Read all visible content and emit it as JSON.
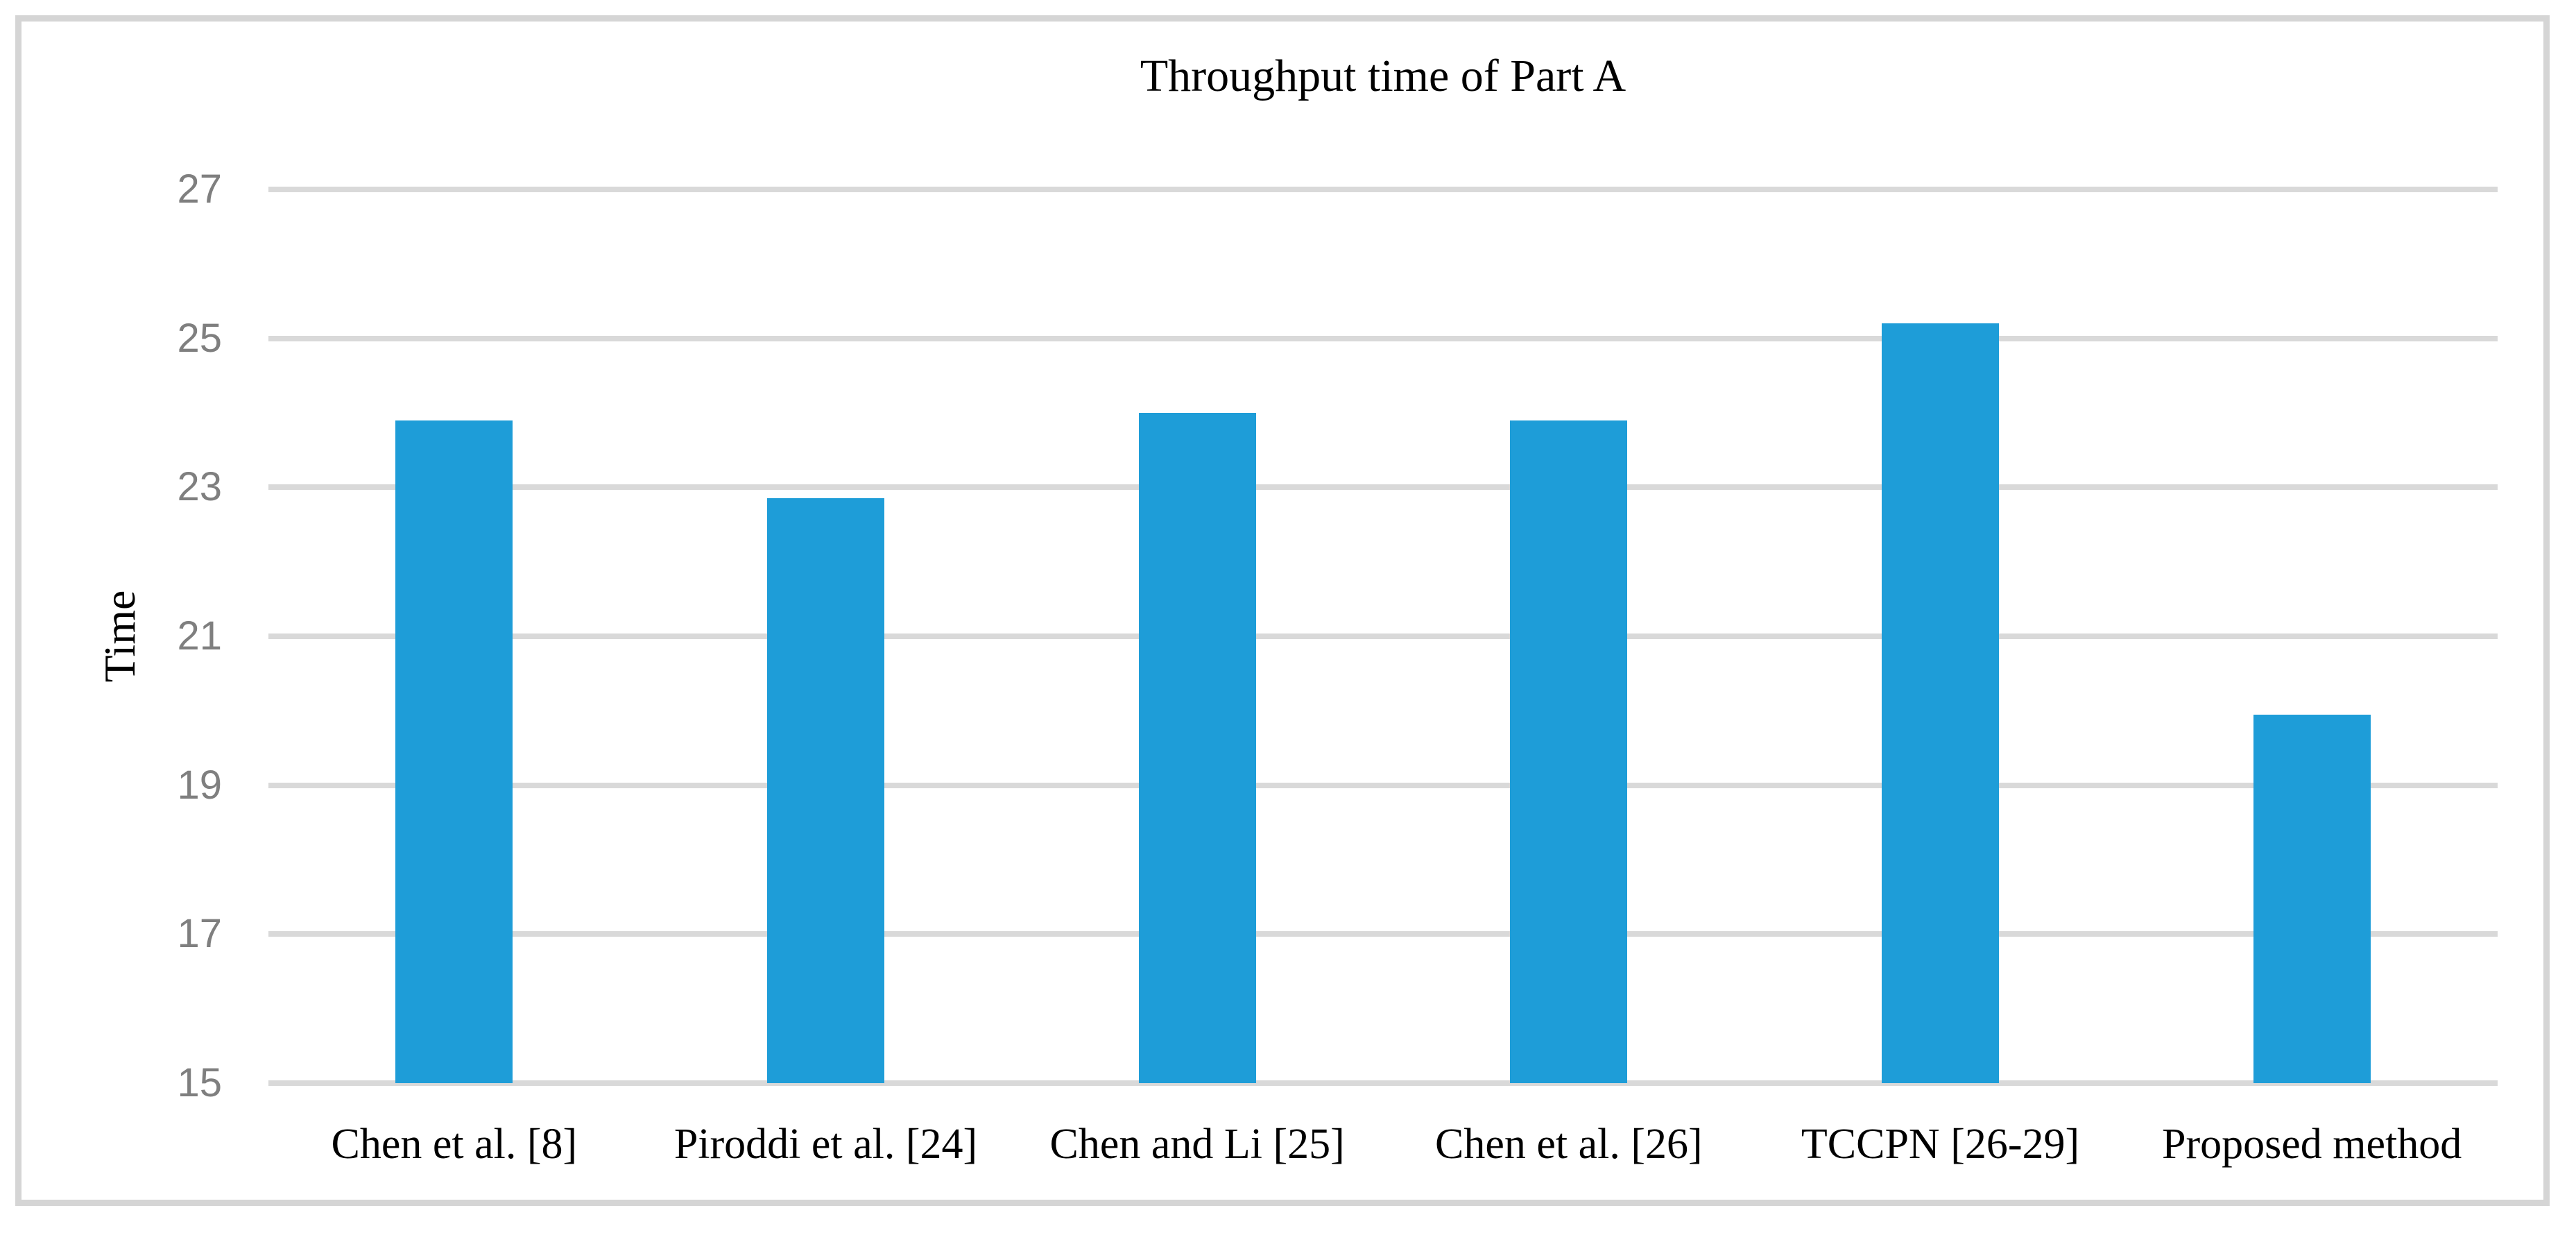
{
  "chart_data": {
    "type": "bar",
    "title": "Throughput time of Part A",
    "ylabel": "Time",
    "xlabel": "",
    "categories": [
      "Chen et al. [8]",
      "Piroddi et al. [24]",
      "Chen and Li [25]",
      "Chen et al. [26]",
      "TCCPN [26-29]",
      "Proposed method"
    ],
    "values": [
      23.9,
      22.85,
      24,
      23.9,
      25.2,
      19.95
    ],
    "ylim": [
      15,
      27
    ],
    "yticks": [
      27,
      25,
      23,
      21,
      19,
      17,
      15
    ],
    "grid": "horizontal-only",
    "legend": "none",
    "bar_color": "#1e9dd8",
    "gridline_color": "#d9d9d9",
    "tick_label_color": "#7f7f7f",
    "frame_color": "#d5d5d5",
    "title_color": "#000000"
  }
}
